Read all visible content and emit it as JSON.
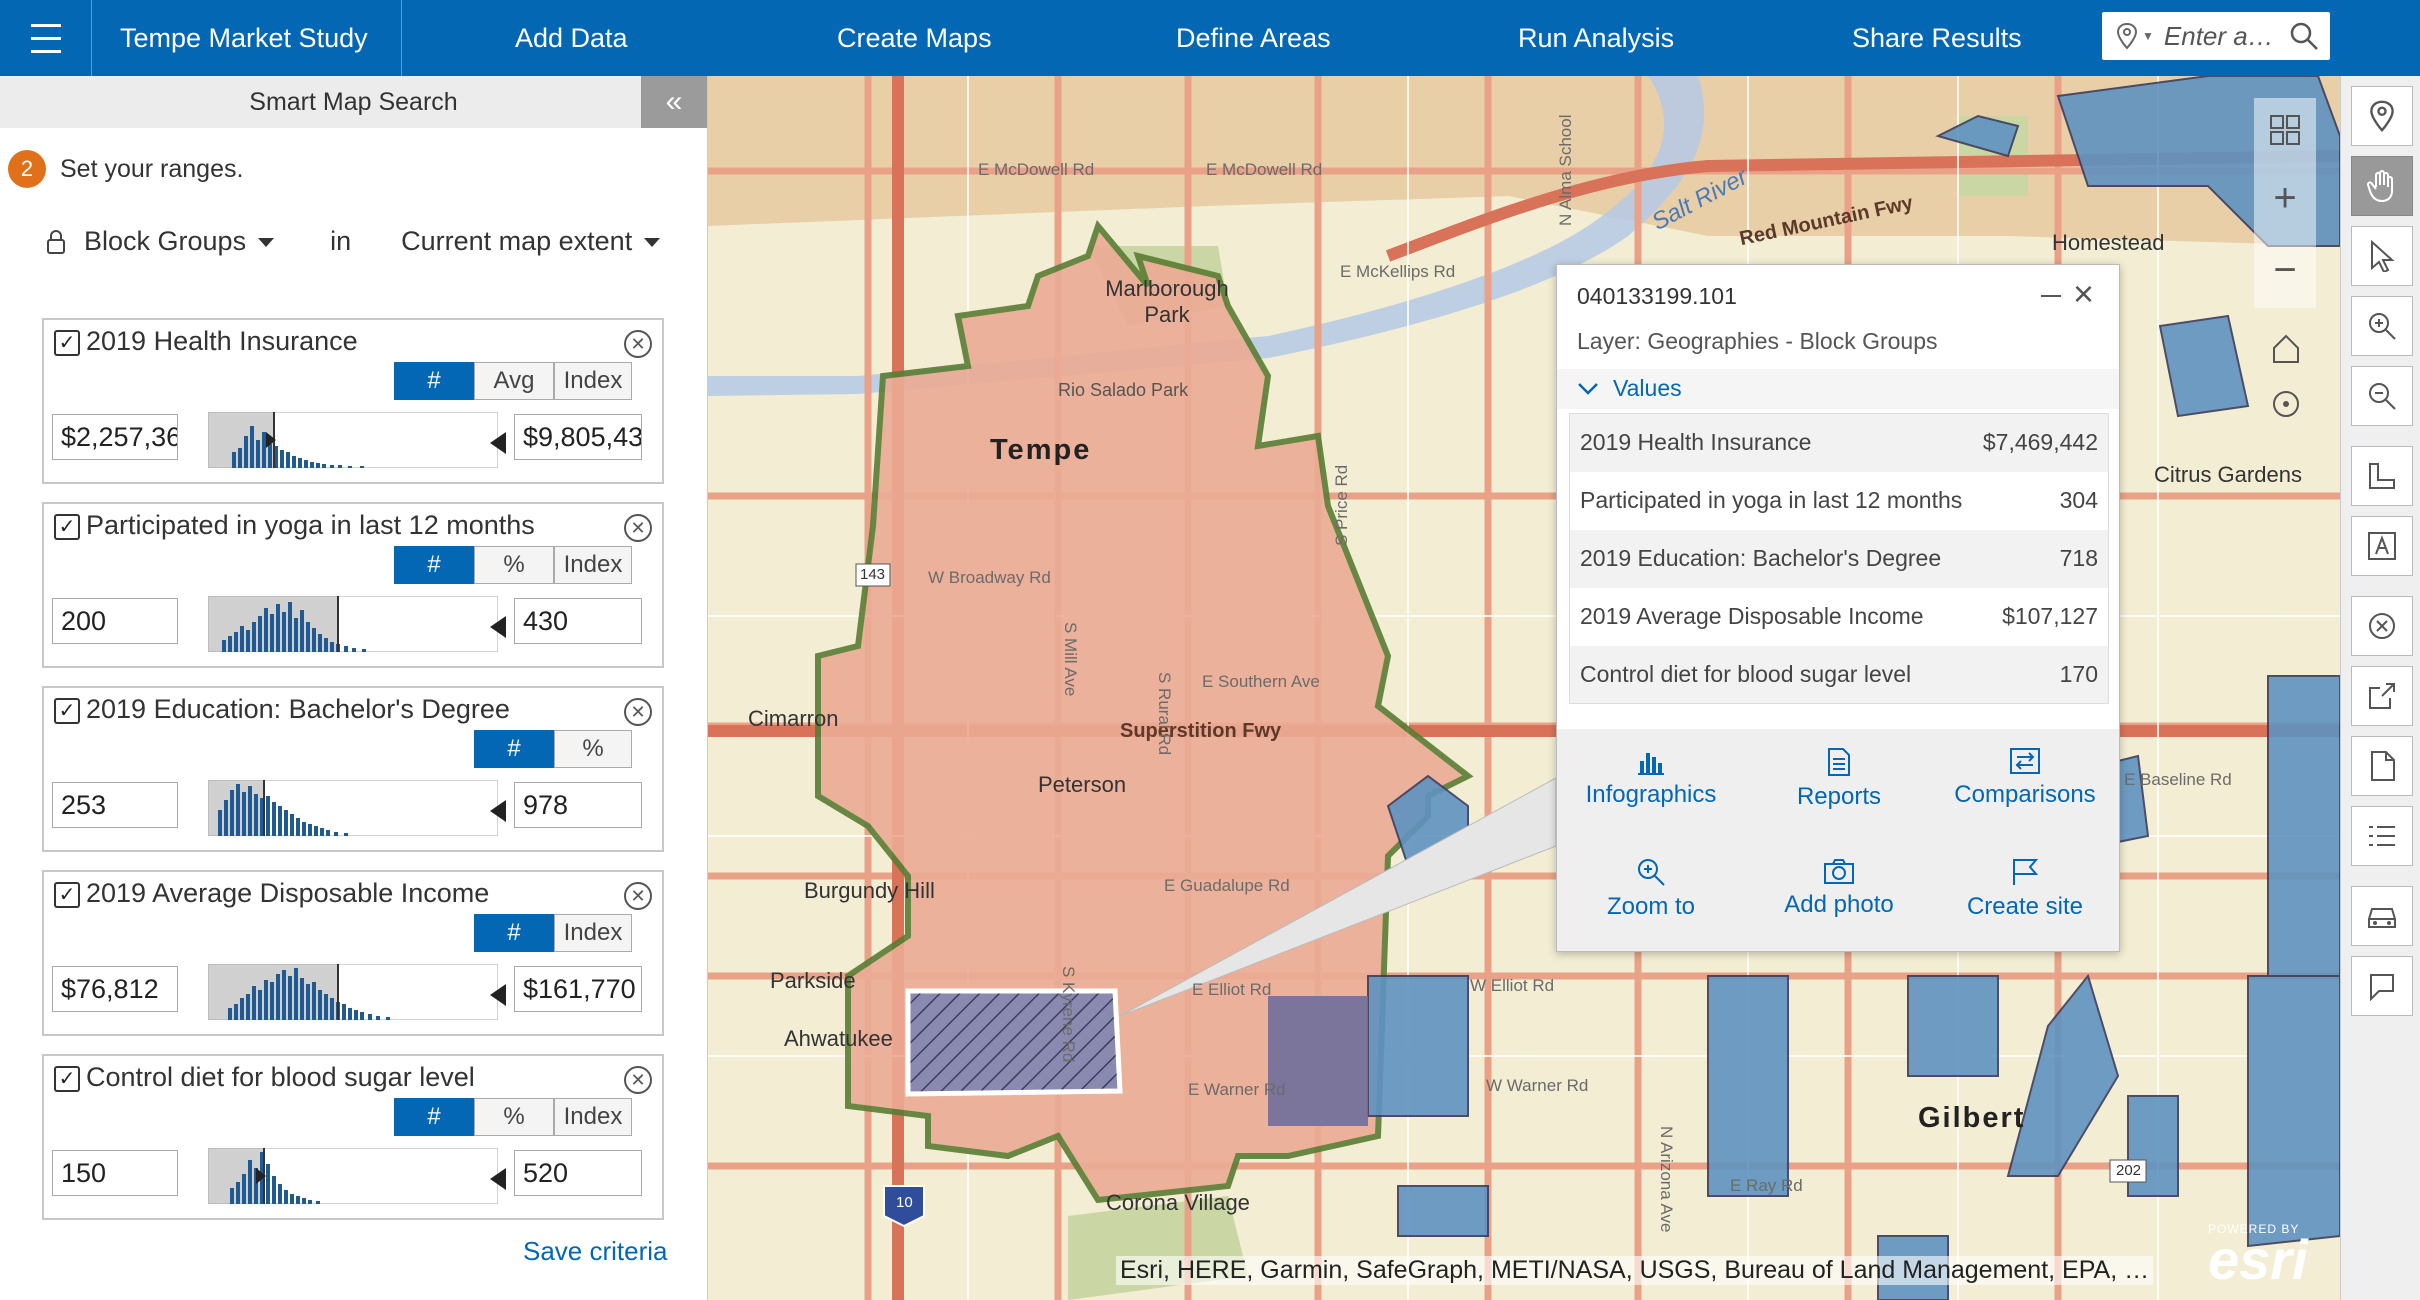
{
  "topbar": {
    "project_title": "Tempe Market Study",
    "nav": [
      "Add Data",
      "Create Maps",
      "Define Areas",
      "Run Analysis",
      "Share Results"
    ],
    "search_placeholder": "Enter a…"
  },
  "panel": {
    "header": "Smart Map Search",
    "step_number": "2",
    "step_text": "Set your ranges.",
    "geography": "Block Groups",
    "in_label": "in",
    "extent": "Current map extent",
    "save_label": "Save criteria"
  },
  "variables": [
    {
      "title": "2019 Health Insurance",
      "modes": [
        "#",
        "Avg",
        "Index"
      ],
      "min": "$2,257,36",
      "max": "$9,805,43"
    },
    {
      "title": "Participated in yoga in last 12 months",
      "modes": [
        "#",
        "%",
        "Index"
      ],
      "min": "200",
      "max": "430"
    },
    {
      "title": "2019 Education: Bachelor's Degree",
      "modes": [
        "#",
        "%"
      ],
      "min": "253",
      "max": "978"
    },
    {
      "title": "2019 Average Disposable Income",
      "modes": [
        "#",
        "Index"
      ],
      "min": "$76,812",
      "max": "$161,770"
    },
    {
      "title": "Control diet for blood sugar level",
      "modes": [
        "#",
        "%",
        "Index"
      ],
      "min": "150",
      "max": "520"
    }
  ],
  "map": {
    "labels": {
      "tempe": "Tempe",
      "marlborough": "Marlborough Park",
      "rio_salado": "Rio Salado Park",
      "peterson": "Peterson",
      "cimarron": "Cimarron",
      "burgundy": "Burgundy Hill",
      "parkside": "Parkside",
      "ahwatukee": "Ahwatukee",
      "corona": "Corona Village",
      "homestead": "Homestead",
      "citrus": "Citrus Gardens",
      "gilbert": "Gilbert",
      "salt_river": "Salt River",
      "red_mountain": "Red Mountain Fwy",
      "superstition": "Superstition Fwy",
      "mcdowell1": "E McDowell Rd",
      "mcdowell2": "E McDowell Rd",
      "mckellips": "E McKellips Rd",
      "broadway": "W Broadway Rd",
      "southern": "E Southern Ave",
      "guadalupe": "E Guadalupe Rd",
      "elliot": "E Elliot Rd",
      "warner": "E Warner Rd",
      "w_elliot": "W Elliot Rd",
      "w_warner": "W Warner Rd",
      "ray": "E Ray Rd",
      "baseline": "E Baseline Rd",
      "price": "S Price Rd",
      "rural": "S Rural Rd",
      "mill": "S Mill Ave",
      "kyrene": "S Kyrene Rd",
      "arizona": "N Arizona Ave",
      "alma": "N Alma School",
      "route_143": "143",
      "route_10": "10",
      "route_202": "202"
    },
    "attribution": "Esri, HERE, Garmin, SafeGraph, METI/NASA, USGS, Bureau of Land Management, EPA, …",
    "esri_powered": "POWERED BY",
    "esri_name": "esri"
  },
  "popup": {
    "id": "040133199.101",
    "layer": "Layer: Geographies - Block Groups",
    "values_label": "Values",
    "rows": [
      {
        "label": "2019 Health Insurance",
        "value": "$7,469,442"
      },
      {
        "label": "Participated in yoga in last 12 months",
        "value": "304"
      },
      {
        "label": "2019 Education: Bachelor's Degree",
        "value": "718"
      },
      {
        "label": "2019 Average Disposable Income",
        "value": "$107,127"
      },
      {
        "label": "Control diet for blood sugar level",
        "value": "170"
      }
    ],
    "actions": [
      "Infographics",
      "Reports",
      "Comparisons",
      "Zoom to",
      "Add photo",
      "Create site"
    ]
  },
  "colors": {
    "brand": "#0367b4",
    "step_badge": "#e0701a",
    "highlight_fill": "#e8a68f",
    "outline": "#4e7a2e",
    "match_fill": "#5e93bf",
    "selected_fill": "#6f6f9b"
  }
}
